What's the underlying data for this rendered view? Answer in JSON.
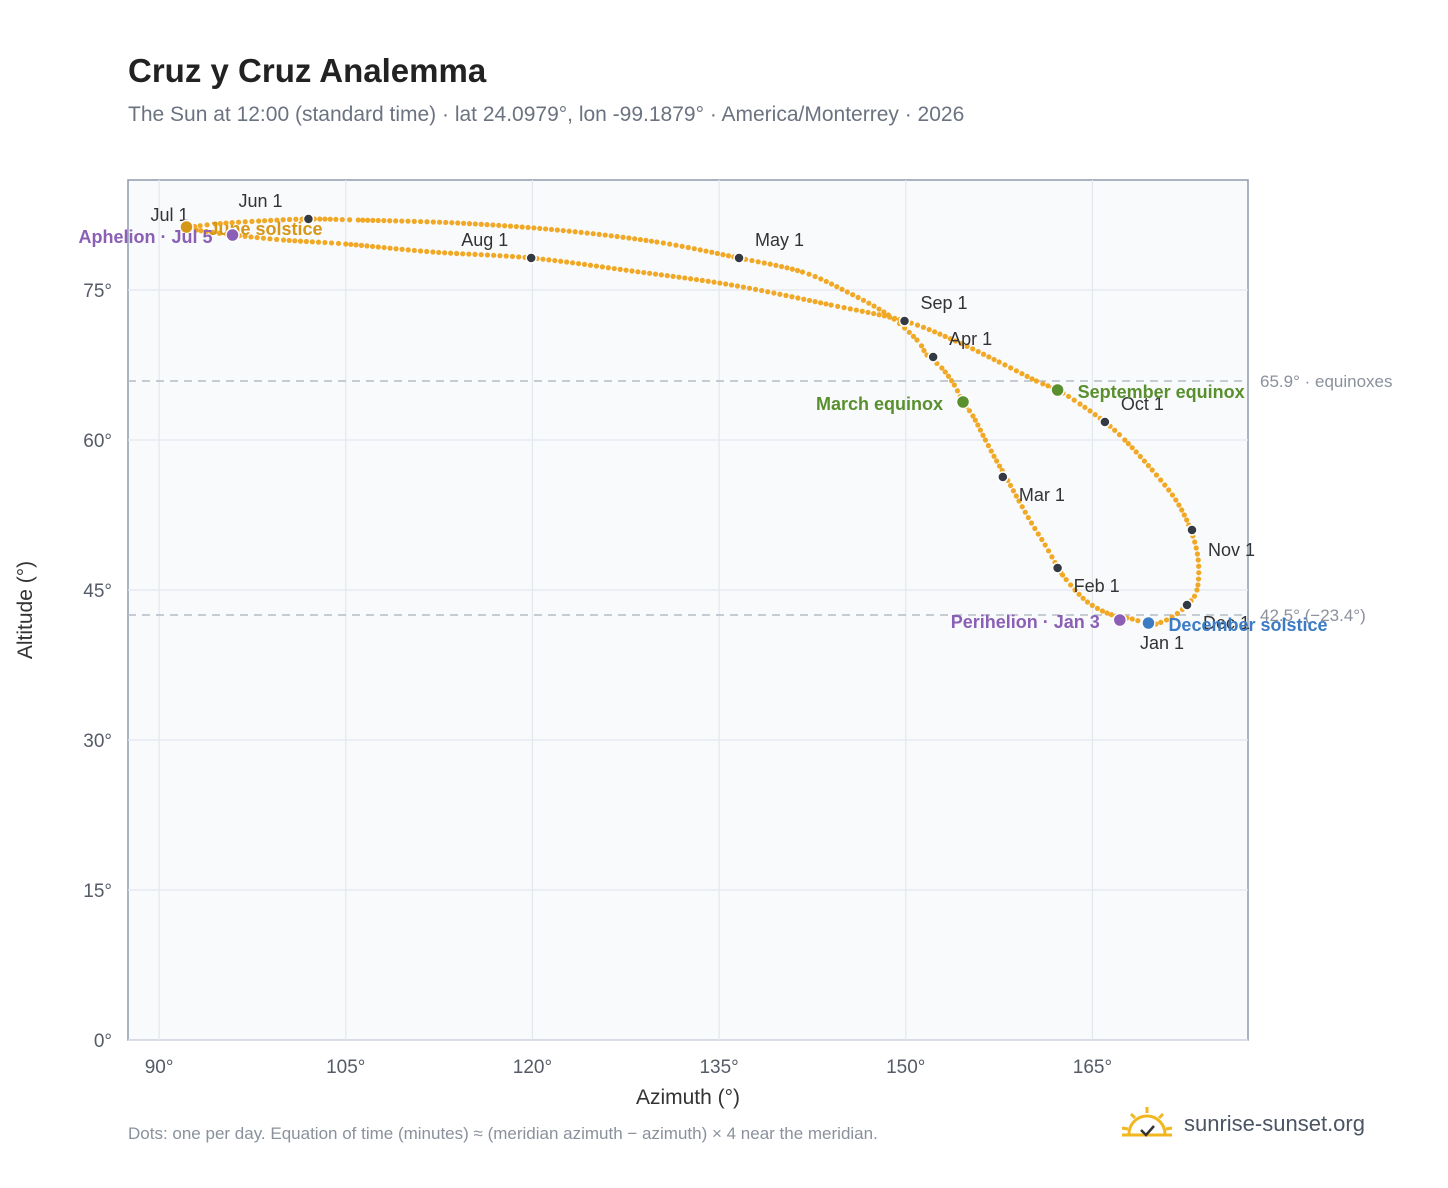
{
  "chart_data": {
    "type": "scatter",
    "title": "Cruz y Cruz Analemma",
    "subtitle": "The Sun at 12:00 (standard time) · lat 24.0979°, lon -99.1879° · America/Monterrey · 2026",
    "xlabel": "Azimuth (°)",
    "ylabel": "Altitude (°)",
    "xlim": [
      87.5,
      177.5
    ],
    "ylim": [
      0,
      86
    ],
    "xticks": [
      90,
      105,
      120,
      135,
      150,
      165
    ],
    "xtick_labels": [
      "90°",
      "105°",
      "120°",
      "135°",
      "150°",
      "165°"
    ],
    "yticks": [
      0,
      15,
      30,
      45,
      60,
      75
    ],
    "ytick_labels": [
      "0°",
      "15°",
      "30°",
      "45°",
      "60°",
      "75°"
    ],
    "grid": true,
    "curve_color": "#f0a825",
    "points": [
      {
        "x": 169.4,
        "y": 41.6
      },
      {
        "x": 168.2,
        "y": 42.1
      },
      {
        "x": 166.9,
        "y": 42.4
      },
      {
        "x": 165.8,
        "y": 42.9
      },
      {
        "x": 164.6,
        "y": 43.8
      },
      {
        "x": 163.6,
        "y": 45.0
      },
      {
        "x": 162.6,
        "y": 46.5
      },
      {
        "x": 162.2,
        "y": 47.3
      },
      {
        "x": 161.2,
        "y": 49.5
      },
      {
        "x": 160.1,
        "y": 51.7
      },
      {
        "x": 159.1,
        "y": 53.9
      },
      {
        "x": 158.0,
        "y": 56.4
      },
      {
        "x": 157.3,
        "y": 57.9
      },
      {
        "x": 156.4,
        "y": 60.0
      },
      {
        "x": 155.4,
        "y": 62.4
      },
      {
        "x": 154.6,
        "y": 63.8
      },
      {
        "x": 153.9,
        "y": 65.5
      },
      {
        "x": 152.9,
        "y": 67.2
      },
      {
        "x": 151.7,
        "y": 68.5
      },
      {
        "x": 150.9,
        "y": 70.0
      },
      {
        "x": 148.6,
        "y": 72.5
      },
      {
        "x": 145.3,
        "y": 74.8
      },
      {
        "x": 141.7,
        "y": 76.8
      },
      {
        "x": 136.6,
        "y": 78.2
      },
      {
        "x": 130.0,
        "y": 79.8
      },
      {
        "x": 122.0,
        "y": 81.0
      },
      {
        "x": 114.0,
        "y": 81.7
      },
      {
        "x": 106.0,
        "y": 82.0
      },
      {
        "x": 102.0,
        "y": 82.1
      },
      {
        "x": 98.0,
        "y": 81.9
      },
      {
        "x": 94.5,
        "y": 81.6
      },
      {
        "x": 92.5,
        "y": 81.3
      },
      {
        "x": 92.2,
        "y": 81.3
      },
      {
        "x": 93.0,
        "y": 81.0
      },
      {
        "x": 96.0,
        "y": 80.5
      },
      {
        "x": 100.0,
        "y": 80.0
      },
      {
        "x": 105.0,
        "y": 79.6
      },
      {
        "x": 112.0,
        "y": 78.8
      },
      {
        "x": 119.9,
        "y": 78.2
      },
      {
        "x": 128.0,
        "y": 76.9
      },
      {
        "x": 136.0,
        "y": 75.5
      },
      {
        "x": 144.0,
        "y": 73.5
      },
      {
        "x": 149.9,
        "y": 71.9
      },
      {
        "x": 154.0,
        "y": 69.9
      },
      {
        "x": 157.5,
        "y": 67.8
      },
      {
        "x": 160.5,
        "y": 65.9
      },
      {
        "x": 162.2,
        "y": 65.0
      },
      {
        "x": 164.0,
        "y": 63.6
      },
      {
        "x": 166.0,
        "y": 61.8
      },
      {
        "x": 167.6,
        "y": 60.0
      },
      {
        "x": 169.8,
        "y": 57.0
      },
      {
        "x": 171.7,
        "y": 54.0
      },
      {
        "x": 172.9,
        "y": 51.0
      },
      {
        "x": 173.5,
        "y": 48.0
      },
      {
        "x": 173.4,
        "y": 45.0
      },
      {
        "x": 172.6,
        "y": 43.5
      },
      {
        "x": 171.4,
        "y": 42.3
      },
      {
        "x": 170.1,
        "y": 41.6
      },
      {
        "x": 169.4,
        "y": 41.6
      }
    ],
    "month_markers": [
      {
        "label": "Jan 1",
        "x": 169.3,
        "y": 41.7
      },
      {
        "label": "Feb 1",
        "x": 162.2,
        "y": 47.2
      },
      {
        "label": "Mar 1",
        "x": 157.8,
        "y": 56.3
      },
      {
        "label": "Apr 1",
        "x": 152.2,
        "y": 68.3
      },
      {
        "label": "May 1",
        "x": 136.6,
        "y": 78.2
      },
      {
        "label": "Jun 1",
        "x": 102.0,
        "y": 82.1
      },
      {
        "label": "Jul 1",
        "x": 92.2,
        "y": 81.3
      },
      {
        "label": "Aug 1",
        "x": 119.9,
        "y": 78.2
      },
      {
        "label": "Sep 1",
        "x": 149.9,
        "y": 71.9
      },
      {
        "label": "Oct 1",
        "x": 166.0,
        "y": 61.8
      },
      {
        "label": "Nov 1",
        "x": 173.0,
        "y": 51.0
      },
      {
        "label": "Dec 1",
        "x": 172.6,
        "y": 43.5
      }
    ],
    "events": [
      {
        "label": "March equinox",
        "x": 154.6,
        "y": 63.8,
        "color": "#5a8f2e"
      },
      {
        "label": "June solstice",
        "x": 92.2,
        "y": 81.3,
        "color": "#d69616"
      },
      {
        "label": "September equinox",
        "x": 162.2,
        "y": 65.0,
        "color": "#5a8f2e"
      },
      {
        "label": "December solstice",
        "x": 169.5,
        "y": 41.7,
        "color": "#3b7cc4"
      },
      {
        "label": "Perihelion · Jan 3",
        "x": 167.2,
        "y": 42.0,
        "color": "#8a5fb5"
      },
      {
        "label": "Aphelion · Jul 5",
        "x": 95.9,
        "y": 80.5,
        "color": "#8a5fb5"
      }
    ],
    "reference_lines": [
      {
        "y": 65.9,
        "label": "65.9° · equinoxes"
      },
      {
        "y": 42.5,
        "label": "42.5° (−23.4°)"
      }
    ]
  },
  "footnote": "Dots: one per day. Equation of time (minutes) ≈ (meridian azimuth − azimuth) × 4 near the meridian.",
  "brand": {
    "name": "sunrise-sunset.org",
    "icon": "sun-icon",
    "icon_color": "#f2b71f"
  }
}
